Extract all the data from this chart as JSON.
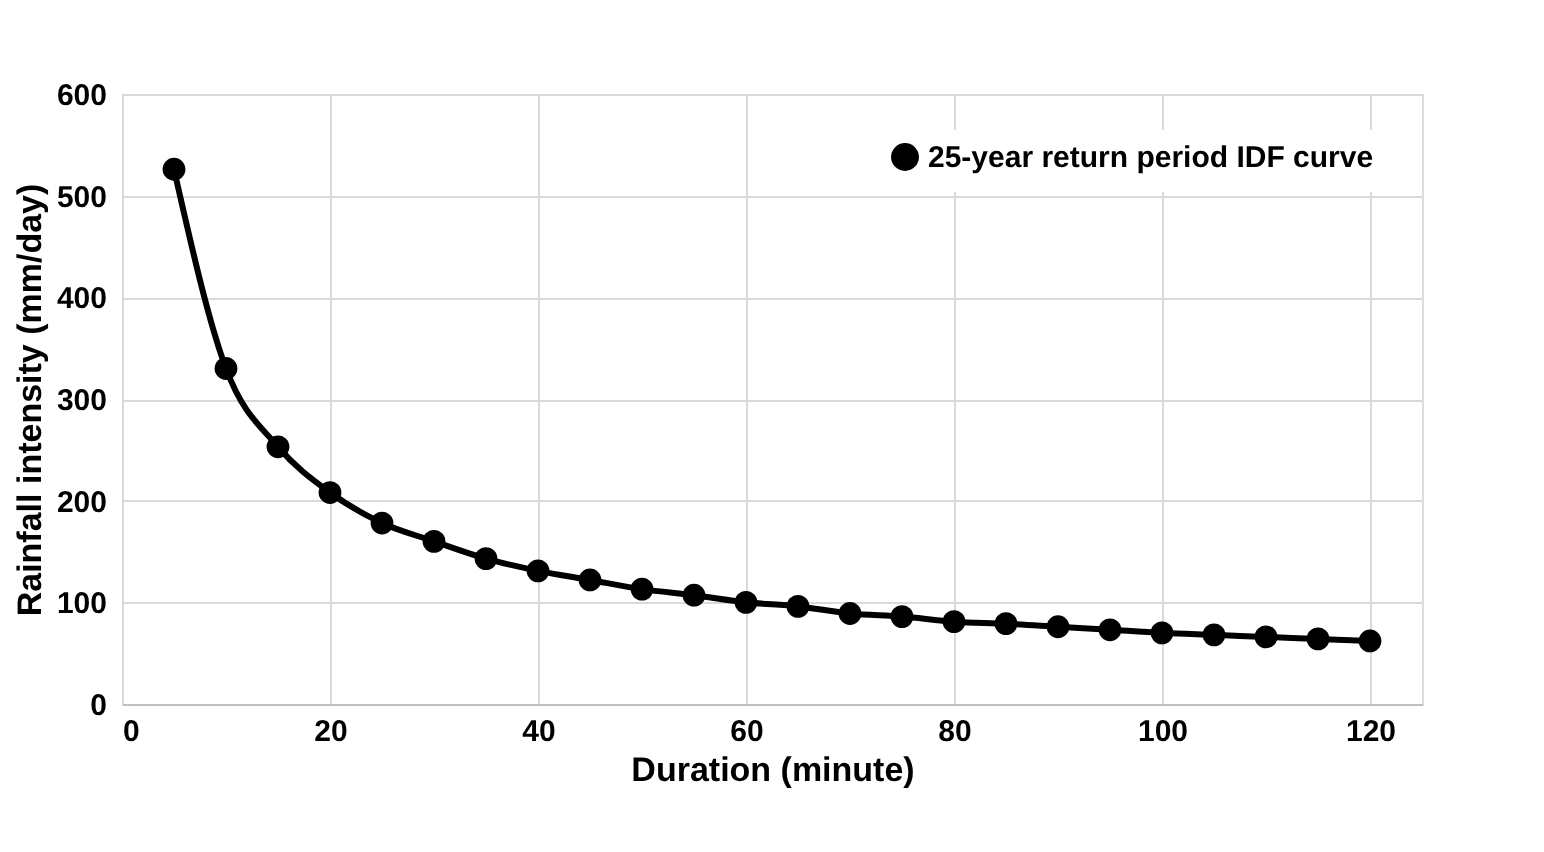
{
  "chart_data": {
    "type": "line",
    "xlabel": "Duration (minute)",
    "ylabel": "Rainfall intensity (mm/day)",
    "x": [
      5,
      10,
      15,
      20,
      25,
      30,
      35,
      40,
      45,
      50,
      55,
      60,
      65,
      70,
      75,
      80,
      85,
      90,
      95,
      100,
      105,
      110,
      115,
      120
    ],
    "series": [
      {
        "name": "25-year return period IDF curve",
        "color": "#000000",
        "values": [
          526,
          330,
          253,
          208,
          178,
          160,
          143,
          131,
          122,
          113,
          107,
          100,
          96,
          89,
          86,
          81,
          79,
          76,
          73,
          70,
          68,
          66,
          64,
          62
        ]
      }
    ],
    "xlim": [
      0,
      125
    ],
    "xticks": [
      0,
      20,
      40,
      60,
      80,
      100,
      120
    ],
    "ylim": [
      0,
      600
    ],
    "yticks": [
      0,
      100,
      200,
      300,
      400,
      500,
      600
    ],
    "grid": true,
    "legend": "top right",
    "marker": "circle",
    "line_style": "solid"
  }
}
